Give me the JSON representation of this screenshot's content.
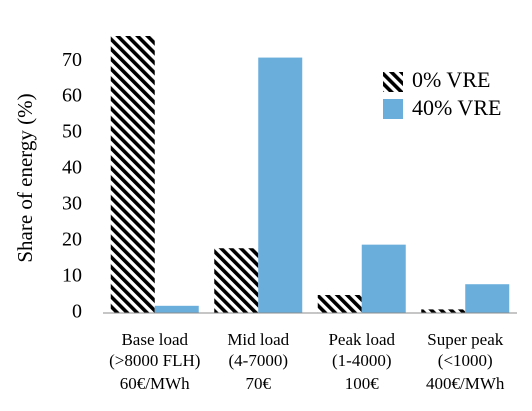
{
  "chart_data": {
    "type": "bar",
    "ylabel": "Share of energy (%)",
    "ylim": [
      0,
      77
    ],
    "yticks": [
      0,
      10,
      20,
      30,
      40,
      50,
      60,
      70
    ],
    "grid": false,
    "legend_position": "top-right",
    "categories": [
      [
        "Base load",
        "(>8000 FLH)",
        "60€/MWh"
      ],
      [
        "Mid load",
        "(4-7000)",
        "70€"
      ],
      [
        "Peak load",
        "(1-4000)",
        "100€"
      ],
      [
        "Super peak",
        "(<1000)",
        "400€/MWh"
      ]
    ],
    "series": [
      {
        "name": "0% VRE",
        "values": [
          77,
          18,
          5,
          1
        ],
        "pattern": "black-diagonal-hatch"
      },
      {
        "name": "40% VRE",
        "values": [
          2,
          71,
          19,
          8
        ],
        "color": "#6aaedc"
      }
    ]
  }
}
